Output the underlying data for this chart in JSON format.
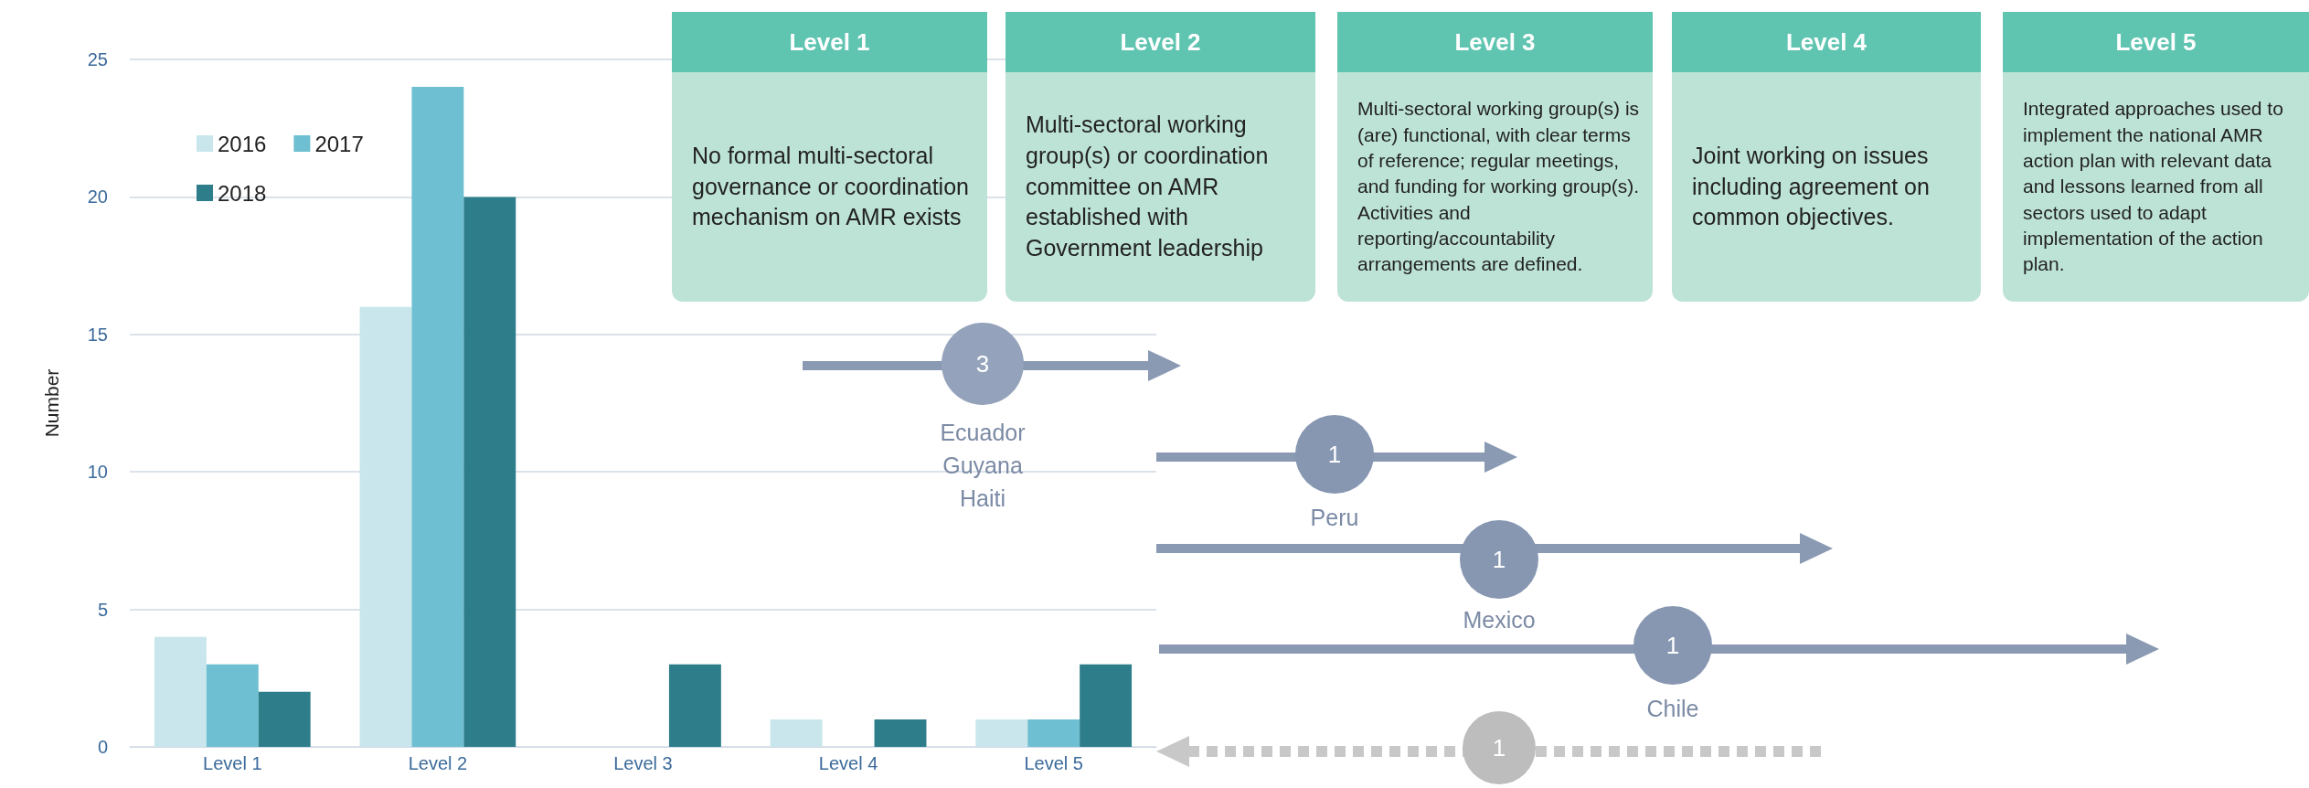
{
  "chart_data": {
    "type": "bar",
    "ylabel": "Number",
    "categories": [
      "Level 1",
      "Level 2",
      "Level 3",
      "Level 4",
      "Level 5"
    ],
    "series": [
      {
        "name": "2016",
        "color": "#c8e6ec",
        "values": [
          4,
          16,
          0,
          1,
          1
        ]
      },
      {
        "name": "2017",
        "color": "#6dbfd1",
        "values": [
          3,
          24,
          0,
          0,
          1
        ]
      },
      {
        "name": "2018",
        "color": "#2e7d8a",
        "values": [
          2,
          20,
          3,
          1,
          3
        ]
      }
    ],
    "ylim": [
      0,
      25
    ],
    "yticks": [
      0,
      5,
      10,
      15,
      20,
      25
    ],
    "grid": "y",
    "legend": "top left",
    "annotations": [
      "Level 1",
      "Level 2",
      "Level 3",
      "Level 4",
      "Level 5",
      "No formal multi-sectoral governance or coordination mechanism on AMR exists",
      "Multi-sectoral working group(s) or coordination committee on AMR established with Government leadership",
      "Multi-sectoral working group(s) is (are) functional, with clear terms of reference; regular meetings, and funding for working group(s). Activities and reporting/accountability arrangements are defined.",
      "Joint working on issues including agreement on common objectives.",
      "Integrated approaches used to implement the national AMR action plan with relevant data and lessons learned from all sectors used to adapt implementation of the action plan.",
      "3",
      "Ecuador\nGuyana\nHaiti",
      "1",
      "Peru",
      "1",
      "Mexico",
      "1",
      "Chile",
      "1"
    ]
  }
}
